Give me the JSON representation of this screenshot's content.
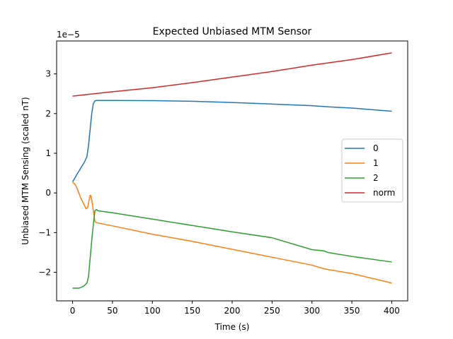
{
  "chart_data": {
    "type": "line",
    "title": "Expected Unbiased MTM Sensor",
    "xlabel": "Time (s)",
    "ylabel": "Unbiased MTM Sensing (scaled nT)",
    "offset_text": "1e−5",
    "xlim": [
      -20,
      420
    ],
    "ylim": [
      -2.72e-05,
      3.83e-05
    ],
    "x_ticks": [
      0,
      50,
      100,
      150,
      200,
      250,
      300,
      350,
      400
    ],
    "y_ticks": [
      -2e-05,
      -1e-05,
      0,
      1e-05,
      2e-05,
      3e-05
    ],
    "y_tick_labels": [
      "−2",
      "−1",
      "0",
      "1",
      "2",
      "3"
    ],
    "grid": false,
    "legend_position": "center right",
    "series": [
      {
        "name": "0",
        "color": "#1f77b4",
        "points": [
          [
            0,
            2.8e-06
          ],
          [
            5,
            4.5e-06
          ],
          [
            10,
            6.2e-06
          ],
          [
            15,
            7.8e-06
          ],
          [
            18,
            9.2e-06
          ],
          [
            20,
            1.2e-05
          ],
          [
            22,
            1.6e-05
          ],
          [
            24,
            2e-05
          ],
          [
            26,
            2.25e-05
          ],
          [
            28,
            2.32e-05
          ],
          [
            30,
            2.33e-05
          ],
          [
            50,
            2.33e-05
          ],
          [
            100,
            2.325e-05
          ],
          [
            150,
            2.31e-05
          ],
          [
            200,
            2.28e-05
          ],
          [
            250,
            2.24e-05
          ],
          [
            300,
            2.2e-05
          ],
          [
            320,
            2.17e-05
          ],
          [
            350,
            2.14e-05
          ],
          [
            400,
            2.06e-05
          ]
        ]
      },
      {
        "name": "1",
        "color": "#ff7f0e",
        "points": [
          [
            0,
            2.7e-06
          ],
          [
            3,
            2.2e-06
          ],
          [
            6,
            1e-06
          ],
          [
            10,
            -1.2e-06
          ],
          [
            14,
            -2.8e-06
          ],
          [
            17,
            -4e-06
          ],
          [
            19,
            -3.6e-06
          ],
          [
            21,
            -1.5e-06
          ],
          [
            22,
            -6e-07
          ],
          [
            23,
            -7e-07
          ],
          [
            24,
            -1.8e-06
          ],
          [
            26,
            -4.5e-06
          ],
          [
            28,
            -7.2e-06
          ],
          [
            30,
            -7.5e-06
          ],
          [
            50,
            -8.3e-06
          ],
          [
            100,
            -1.04e-05
          ],
          [
            150,
            -1.22e-05
          ],
          [
            200,
            -1.42e-05
          ],
          [
            250,
            -1.62e-05
          ],
          [
            300,
            -1.82e-05
          ],
          [
            315,
            -1.91e-05
          ],
          [
            320,
            -1.93e-05
          ],
          [
            350,
            -2.03e-05
          ],
          [
            400,
            -2.27e-05
          ]
        ]
      },
      {
        "name": "2",
        "color": "#2ca02c",
        "points": [
          [
            0,
            -2.4e-05
          ],
          [
            8,
            -2.4e-05
          ],
          [
            14,
            -2.35e-05
          ],
          [
            18,
            -2.27e-05
          ],
          [
            20,
            -2.1e-05
          ],
          [
            22,
            -1.65e-05
          ],
          [
            24,
            -1.2e-05
          ],
          [
            26,
            -8e-06
          ],
          [
            28,
            -4.5e-06
          ],
          [
            30,
            -4.2e-06
          ],
          [
            32,
            -4.5e-06
          ],
          [
            50,
            -5e-06
          ],
          [
            100,
            -6.6e-06
          ],
          [
            150,
            -8.2e-06
          ],
          [
            200,
            -9.8e-06
          ],
          [
            250,
            -1.13e-05
          ],
          [
            300,
            -1.43e-05
          ],
          [
            315,
            -1.46e-05
          ],
          [
            320,
            -1.5e-05
          ],
          [
            350,
            -1.6e-05
          ],
          [
            400,
            -1.74e-05
          ]
        ]
      },
      {
        "name": "norm",
        "color": "#d62728",
        "points": [
          [
            0,
            2.44e-05
          ],
          [
            50,
            2.55e-05
          ],
          [
            100,
            2.65e-05
          ],
          [
            150,
            2.78e-05
          ],
          [
            200,
            2.92e-05
          ],
          [
            250,
            3.06e-05
          ],
          [
            300,
            3.22e-05
          ],
          [
            350,
            3.36e-05
          ],
          [
            400,
            3.53e-05
          ]
        ]
      }
    ]
  }
}
